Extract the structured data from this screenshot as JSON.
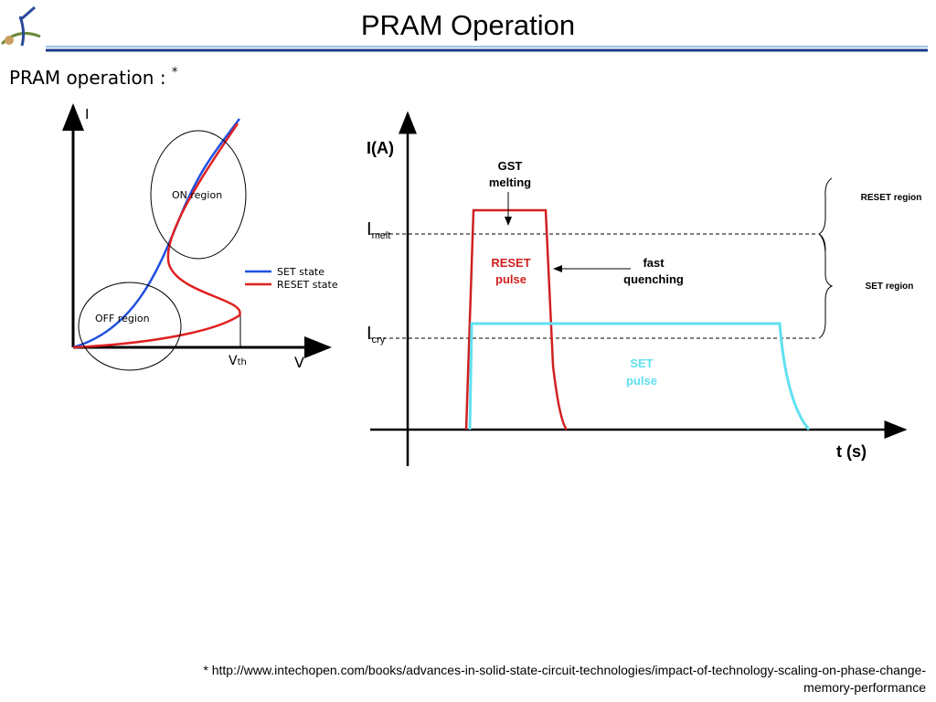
{
  "header": {
    "title": "PRAM Operation"
  },
  "subtitle": {
    "text": "PRAM operation : ",
    "mark": "*"
  },
  "iv_diagram": {
    "y_axis": "I",
    "x_axis": "V",
    "threshold": {
      "main": "V",
      "sub": "th"
    },
    "on_region": "ON region",
    "off_region": "OFF region",
    "legend": [
      "SET state",
      "RESET state"
    ]
  },
  "pulse_diagram": {
    "y_axis": "I(A)",
    "x_axis": "t (s)",
    "melt_level": {
      "main": "I",
      "sub": "melt"
    },
    "cry_level": {
      "main": "I",
      "sub": "cry"
    },
    "gst_melting": [
      "GST",
      "melting"
    ],
    "reset_pulse": [
      "RESET",
      "pulse"
    ],
    "fast_quenching": [
      "fast",
      "quenching"
    ],
    "set_pulse": [
      "SET",
      "pulse"
    ],
    "reset_region": "RESET region",
    "set_region": "SET region"
  },
  "footnote": [
    "* http://www.intechopen.com/books/advances-in-solid-state-circuit-technologies/impact-of-technology-scaling-on-phase-change-",
    "memory-performance"
  ]
}
